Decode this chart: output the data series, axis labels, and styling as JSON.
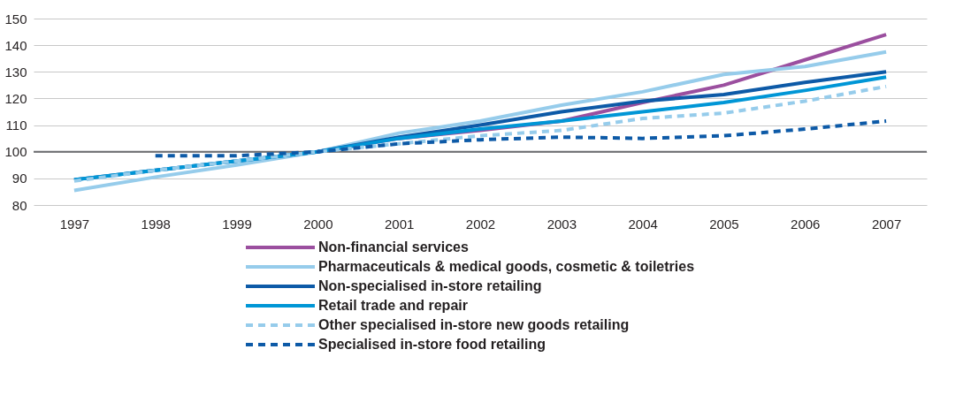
{
  "chart_data": {
    "type": "line",
    "categories": [
      "1997",
      "1998",
      "1999",
      "2000",
      "2001",
      "2002",
      "2003",
      "2004",
      "2005",
      "2006",
      "2007"
    ],
    "ylim": [
      80,
      150
    ],
    "yticks": [
      80,
      90,
      100,
      110,
      120,
      130,
      140,
      150
    ],
    "grid": "y",
    "legend": "bottom",
    "marker": "none",
    "ref_lines": [
      {
        "axis": "y",
        "value": 100,
        "color": "#6d6e71"
      }
    ],
    "series": [
      {
        "name": "Non-financial services",
        "color": "#9b4f9f",
        "line_style": "solid",
        "values": [
          null,
          null,
          null,
          100,
          105,
          108,
          111.5,
          118.5,
          125,
          134.5,
          144
        ]
      },
      {
        "name": "Pharmaceuticals & medical goods, cosmetic & toiletries",
        "color": "#96cceb",
        "line_style": "solid",
        "values": [
          85.5,
          90.5,
          95,
          100,
          107,
          111.5,
          117.5,
          122.5,
          129,
          132,
          137.5
        ]
      },
      {
        "name": "Non-specialised in-store retailing",
        "color": "#0d5aa7",
        "line_style": "solid",
        "values": [
          89.5,
          93,
          96.5,
          100,
          105.5,
          110,
          115,
          119,
          121.5,
          126,
          130
        ]
      },
      {
        "name": "Retail trade and repair",
        "color": "#0096d6",
        "line_style": "solid",
        "values": [
          89.5,
          93,
          96.5,
          100,
          105,
          108.5,
          111.5,
          115,
          118.5,
          123,
          128
        ]
      },
      {
        "name": "Other specialised in-store new goods retailing",
        "color": "#96cceb",
        "line_style": "dashed",
        "values": [
          89,
          93,
          96.5,
          100,
          103,
          106,
          108,
          112.5,
          114.5,
          119,
          124.5
        ]
      },
      {
        "name": "Specialised in-store food retailing",
        "color": "#0d5aa7",
        "line_style": "dashed",
        "values": [
          null,
          98.5,
          98.5,
          100,
          103,
          104.5,
          105.5,
          105,
          106,
          108.5,
          111.5
        ]
      }
    ]
  }
}
